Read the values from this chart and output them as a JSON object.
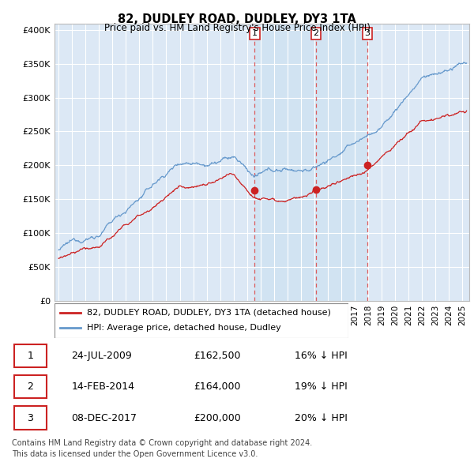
{
  "title": "82, DUDLEY ROAD, DUDLEY, DY3 1TA",
  "subtitle": "Price paid vs. HM Land Registry's House Price Index (HPI)",
  "ylabel_ticks": [
    "£0",
    "£50K",
    "£100K",
    "£150K",
    "£200K",
    "£250K",
    "£300K",
    "£350K",
    "£400K"
  ],
  "ytick_values": [
    0,
    50000,
    100000,
    150000,
    200000,
    250000,
    300000,
    350000,
    400000
  ],
  "ylim": [
    0,
    410000
  ],
  "sale_dates_num": [
    2009.56,
    2014.12,
    2017.92
  ],
  "sale_prices": [
    162500,
    164000,
    200000
  ],
  "sale_labels": [
    "1",
    "2",
    "3"
  ],
  "legend_line1": "82, DUDLEY ROAD, DUDLEY, DY3 1TA (detached house)",
  "legend_line2": "HPI: Average price, detached house, Dudley",
  "table_data": [
    [
      "1",
      "24-JUL-2009",
      "£162,500",
      "16% ↓ HPI"
    ],
    [
      "2",
      "14-FEB-2014",
      "£164,000",
      "19% ↓ HPI"
    ],
    [
      "3",
      "08-DEC-2017",
      "£200,000",
      "20% ↓ HPI"
    ]
  ],
  "footer": "Contains HM Land Registry data © Crown copyright and database right 2024.\nThis data is licensed under the Open Government Licence v3.0.",
  "red_color": "#cc2222",
  "blue_color": "#6699cc",
  "shade_color": "#dce8f5"
}
